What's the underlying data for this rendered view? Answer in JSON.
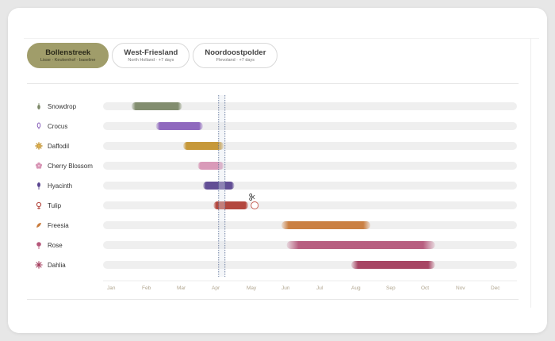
{
  "tabs": [
    {
      "title": "Bollenstreek",
      "subtitle": "Lisse · Keukenhof · baseline",
      "active": true
    },
    {
      "title": "West-Friesland",
      "subtitle": "North Holland · +7 days",
      "active": false
    },
    {
      "title": "Noordoostpolder",
      "subtitle": "Flevoland · +7 days",
      "active": false
    }
  ],
  "chart_data": {
    "type": "gantt",
    "x_axis": [
      "Jan",
      "Feb",
      "Mar",
      "Apr",
      "May",
      "Jun",
      "Jul",
      "Aug",
      "Sep",
      "Oct",
      "Nov",
      "Dec"
    ],
    "xlim_months": [
      0,
      12
    ],
    "markers": [
      3.2,
      3.38
    ],
    "colors": {
      "track": "#efefef",
      "marker": "#4a5f8a",
      "axis_text": "#b0a58f"
    },
    "series": [
      {
        "name": "Snowdrop",
        "icon": "snowdrop-icon",
        "color": "#7c8868",
        "start": 0.7,
        "end": 2.15
      },
      {
        "name": "Crocus",
        "icon": "crocus-icon",
        "color": "#8a62bb",
        "start": 1.4,
        "end": 2.75
      },
      {
        "name": "Daffodil",
        "icon": "daffodil-icon",
        "color": "#c49431",
        "start": 2.18,
        "end": 3.35
      },
      {
        "name": "Cherry Blossom",
        "icon": "cherry-blossom-icon",
        "color": "#d896b6",
        "start": 2.6,
        "end": 3.35
      },
      {
        "name": "Hyacinth",
        "icon": "hyacinth-icon",
        "color": "#5a4590",
        "start": 2.75,
        "end": 3.65
      },
      {
        "name": "Tulip",
        "icon": "tulip-icon",
        "color": "#b03e35",
        "start": 3.05,
        "end": 4.05,
        "cut_marker": true
      },
      {
        "name": "Freesia",
        "icon": "freesia-icon",
        "color": "#c87a3a",
        "start": 5.0,
        "end": 7.55
      },
      {
        "name": "Rose",
        "icon": "rose-icon",
        "color": "#b5577a",
        "start": 5.15,
        "end": 9.4
      },
      {
        "name": "Dahlia",
        "icon": "dahlia-icon",
        "color": "#a33d5d",
        "start": 7.0,
        "end": 9.4
      }
    ]
  }
}
